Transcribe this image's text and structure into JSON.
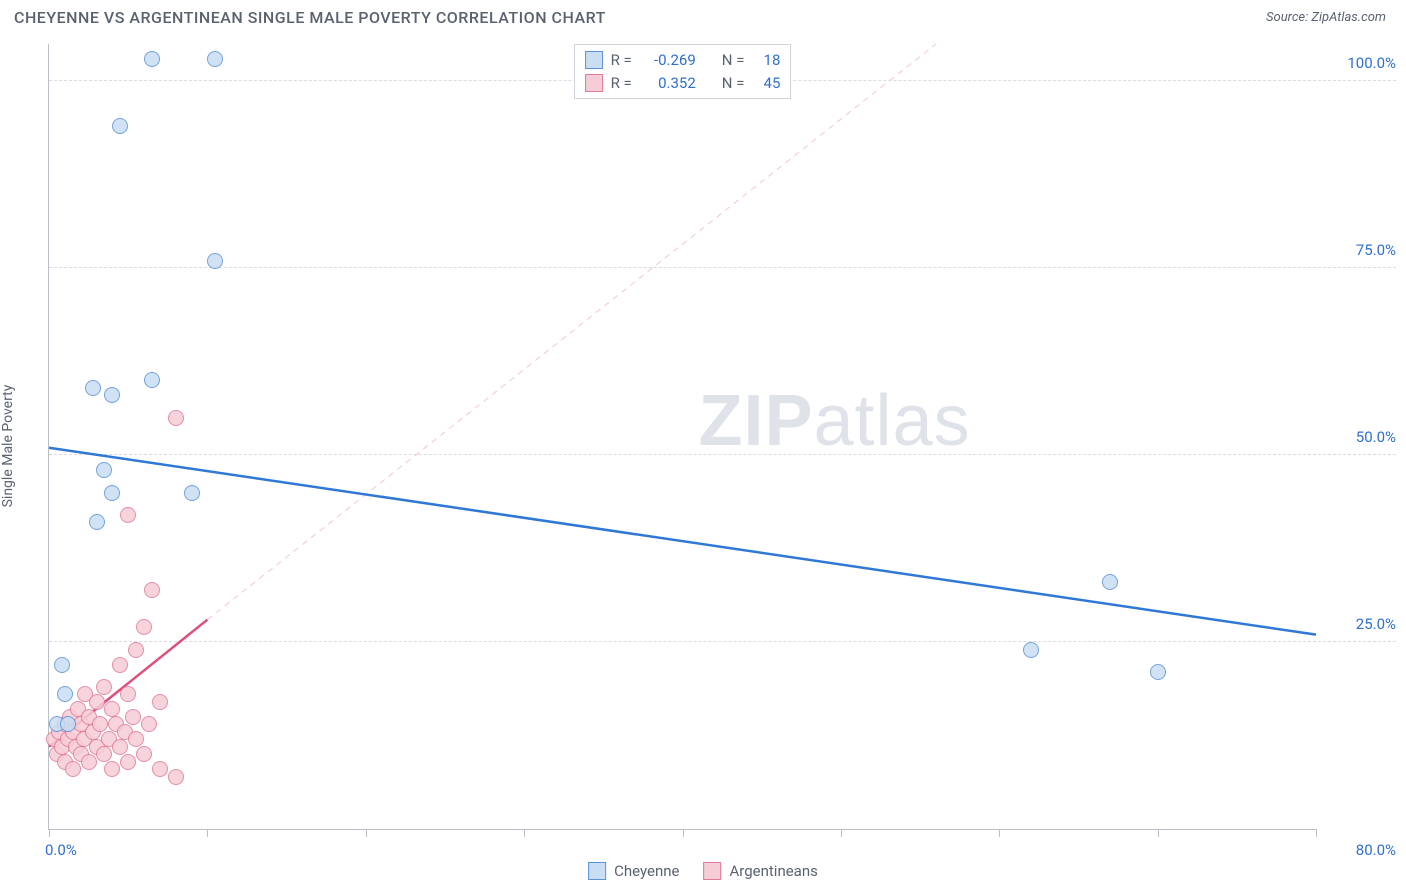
{
  "title": "CHEYENNE VS ARGENTINEAN SINGLE MALE POVERTY CORRELATION CHART",
  "source_label": "Source: ZipAtlas.com",
  "y_axis_label": "Single Male Poverty",
  "watermark": {
    "bold": "ZIP",
    "rest": "atlas"
  },
  "chart": {
    "type": "scatter",
    "xlim": [
      0,
      80
    ],
    "ylim": [
      0,
      105
    ],
    "x_label_min": "0.0%",
    "x_label_max": "80.0%",
    "x_label_color": "#2f6fd0",
    "y_ticks": [
      {
        "v": 25,
        "label": "25.0%"
      },
      {
        "v": 50,
        "label": "50.0%"
      },
      {
        "v": 75,
        "label": "75.0%"
      },
      {
        "v": 100,
        "label": "100.0%"
      }
    ],
    "y_tick_color": "#2f6fd0",
    "x_tick_positions": [
      0,
      10,
      20,
      30,
      40,
      50,
      60,
      70,
      80
    ],
    "grid_color": "#d8dbe0",
    "background_color": "#ffffff",
    "marker_radius": 8,
    "marker_border_width": 1.5,
    "series": [
      {
        "name": "Cheyenne",
        "fill": "#c9ddf3",
        "stroke": "#5b93d6",
        "r_label": "R =",
        "r_value": "-0.269",
        "n_label": "N =",
        "n_value": "18",
        "trend": {
          "x1": 0,
          "y1": 51,
          "x2": 80,
          "y2": 26,
          "color": "#2f78d6",
          "width": 2.5,
          "dash": false
        },
        "trend_ext": {
          "x1": 0,
          "y1": 51,
          "x2": 80,
          "y2": 26,
          "color": "#c9ddf3",
          "width": 1,
          "dash": true
        },
        "points": [
          {
            "x": 0.5,
            "y": 14
          },
          {
            "x": 0.8,
            "y": 22
          },
          {
            "x": 1,
            "y": 18
          },
          {
            "x": 1.2,
            "y": 14
          },
          {
            "x": 3,
            "y": 41
          },
          {
            "x": 3.5,
            "y": 48
          },
          {
            "x": 4,
            "y": 45
          },
          {
            "x": 4,
            "y": 58
          },
          {
            "x": 2.8,
            "y": 59
          },
          {
            "x": 6.5,
            "y": 60
          },
          {
            "x": 9,
            "y": 45
          },
          {
            "x": 4.5,
            "y": 94
          },
          {
            "x": 6.5,
            "y": 103
          },
          {
            "x": 10.5,
            "y": 103
          },
          {
            "x": 10.5,
            "y": 76
          },
          {
            "x": 62,
            "y": 24
          },
          {
            "x": 67,
            "y": 33
          },
          {
            "x": 70,
            "y": 21
          }
        ]
      },
      {
        "name": "Argentineans",
        "fill": "#f6cdd7",
        "stroke": "#e07a98",
        "r_label": "R =",
        "r_value": "0.352",
        "n_label": "N =",
        "n_value": "45",
        "trend": {
          "x1": 0,
          "y1": 11,
          "x2": 10,
          "y2": 28,
          "color": "#e04f79",
          "width": 2.5,
          "dash": false
        },
        "trend_ext": {
          "x1": 10,
          "y1": 28,
          "x2": 56,
          "y2": 105,
          "color": "#f2c6d1",
          "width": 1,
          "dash": true
        },
        "points": [
          {
            "x": 0.3,
            "y": 12
          },
          {
            "x": 0.5,
            "y": 10
          },
          {
            "x": 0.6,
            "y": 13
          },
          {
            "x": 0.8,
            "y": 11
          },
          {
            "x": 1,
            "y": 9
          },
          {
            "x": 1,
            "y": 14
          },
          {
            "x": 1.2,
            "y": 12
          },
          {
            "x": 1.3,
            "y": 15
          },
          {
            "x": 1.5,
            "y": 8
          },
          {
            "x": 1.5,
            "y": 13
          },
          {
            "x": 1.7,
            "y": 11
          },
          {
            "x": 1.8,
            "y": 16
          },
          {
            "x": 2,
            "y": 10
          },
          {
            "x": 2,
            "y": 14
          },
          {
            "x": 2.2,
            "y": 12
          },
          {
            "x": 2.3,
            "y": 18
          },
          {
            "x": 2.5,
            "y": 9
          },
          {
            "x": 2.5,
            "y": 15
          },
          {
            "x": 2.8,
            "y": 13
          },
          {
            "x": 3,
            "y": 11
          },
          {
            "x": 3,
            "y": 17
          },
          {
            "x": 3.2,
            "y": 14
          },
          {
            "x": 3.5,
            "y": 10
          },
          {
            "x": 3.5,
            "y": 19
          },
          {
            "x": 3.8,
            "y": 12
          },
          {
            "x": 4,
            "y": 16
          },
          {
            "x": 4,
            "y": 8
          },
          {
            "x": 4.2,
            "y": 14
          },
          {
            "x": 4.5,
            "y": 11
          },
          {
            "x": 4.5,
            "y": 22
          },
          {
            "x": 4.8,
            "y": 13
          },
          {
            "x": 5,
            "y": 18
          },
          {
            "x": 5,
            "y": 9
          },
          {
            "x": 5.3,
            "y": 15
          },
          {
            "x": 5.5,
            "y": 12
          },
          {
            "x": 5.5,
            "y": 24
          },
          {
            "x": 6,
            "y": 10
          },
          {
            "x": 6,
            "y": 27
          },
          {
            "x": 6.3,
            "y": 14
          },
          {
            "x": 6.5,
            "y": 32
          },
          {
            "x": 7,
            "y": 8
          },
          {
            "x": 7,
            "y": 17
          },
          {
            "x": 5,
            "y": 42
          },
          {
            "x": 8,
            "y": 55
          },
          {
            "x": 8,
            "y": 7
          }
        ]
      }
    ]
  },
  "legend_bottom": [
    {
      "label": "Cheyenne",
      "fill": "#c9ddf3",
      "stroke": "#5b93d6"
    },
    {
      "label": "Argentineans",
      "fill": "#f6cdd7",
      "stroke": "#e07a98"
    }
  ],
  "stat_value_color": "#2f6fd0",
  "stat_label_color": "#5a6270"
}
